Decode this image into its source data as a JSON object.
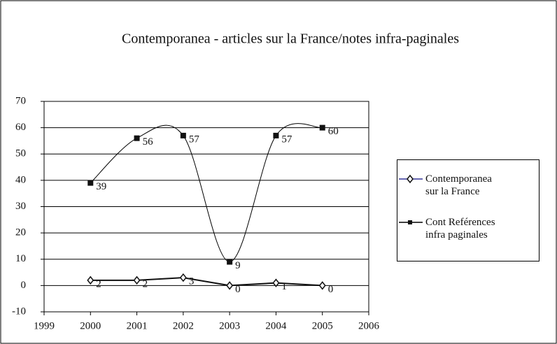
{
  "chart_data": {
    "type": "line",
    "title": "Contemporanea - articles sur la France/notes infra-paginales",
    "x": [
      2000,
      2001,
      2002,
      2003,
      2004,
      2005
    ],
    "series": [
      {
        "name": "Contemporanea sur la France",
        "color": "#333399",
        "marker": "diamond",
        "smooth": false,
        "values": [
          2,
          2,
          3,
          0,
          1,
          0
        ]
      },
      {
        "name": "Cont Reférences infra paginales",
        "color": "#000000",
        "marker": "square",
        "smooth": true,
        "values": [
          39,
          56,
          57,
          9,
          57,
          60
        ]
      }
    ],
    "xlim": [
      1999,
      2006
    ],
    "xticks": [
      1999,
      2000,
      2001,
      2002,
      2003,
      2004,
      2005,
      2006
    ],
    "ylim": [
      -10,
      70
    ],
    "yticks": [
      -10,
      0,
      10,
      20,
      30,
      40,
      50,
      60,
      70
    ],
    "grid": true,
    "legend": "right"
  }
}
